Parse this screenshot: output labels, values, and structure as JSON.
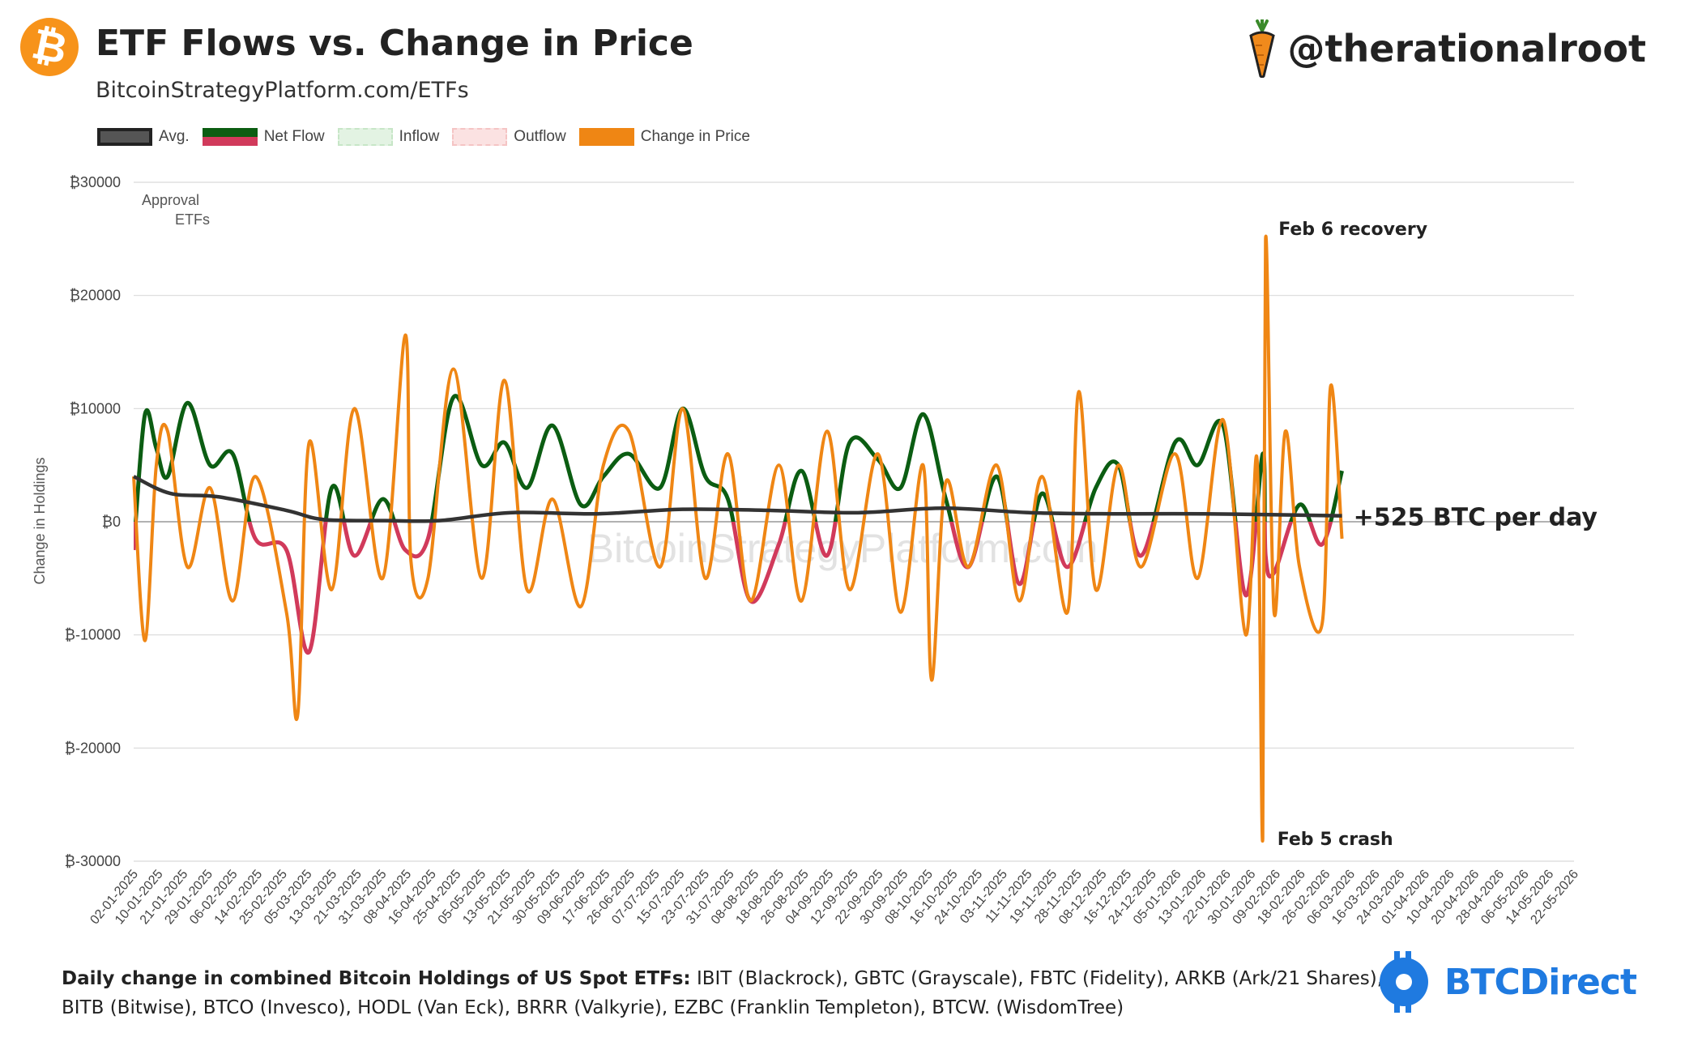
{
  "header": {
    "title": "ETF Flows vs. Change in Price",
    "subtitle": "BitcoinStrategyPlatform.com/ETFs",
    "logo_glyph": "₿",
    "handle": "@therationalroot"
  },
  "legend": [
    {
      "label": "Avg.",
      "key": "avg"
    },
    {
      "label": "Net Flow",
      "key": "net"
    },
    {
      "label": "Inflow",
      "key": "inflow"
    },
    {
      "label": "Outflow",
      "key": "outflow"
    },
    {
      "label": "Change in Price",
      "key": "price"
    }
  ],
  "colors": {
    "avg": "#333333",
    "net_positive": "#0b5d12",
    "net_negative": "#d13a5b",
    "inflow": "#d9efd9",
    "outflow": "#f9d6d6",
    "price": "#ef8614",
    "grid": "#d9d9d9",
    "brand": "#1f7ae0",
    "bitcoin": "#f7931a"
  },
  "footer": {
    "bold": "Daily change in combined Bitcoin Holdings of US Spot ETFs:",
    "text": " IBIT (Blackrock), GBTC (Grayscale), FBTC (Fidelity), ARKB (Ark/21 Shares), BITB (Bitwise), BTCO (Invesco), HODL (Van Eck), BRRR (Valkyrie), EZBC (Franklin Templeton), BTCW. (WisdomTree)"
  },
  "brand": {
    "name": "BTCDirect"
  },
  "watermark": "BitcoinStrategyPlatform.com",
  "chart_data": {
    "type": "line",
    "ylabel": "Change in Holdings",
    "ylim": [
      -30000,
      30000
    ],
    "yticks": [
      30000,
      20000,
      10000,
      0,
      -10000,
      -20000,
      -30000
    ],
    "ytick_labels": [
      "₿30000",
      "₿20000",
      "₿10000",
      "₿0",
      "₿-10000",
      "₿-20000",
      "₿-30000"
    ],
    "grid": true,
    "legend_position": "top-left",
    "x_range": [
      "2025-01-02",
      "2026-05-26"
    ],
    "x_tick_labels": [
      "02-01-2025",
      "10-01-2025",
      "21-01-2025",
      "29-01-2025",
      "06-02-2025",
      "14-02-2025",
      "25-02-2025",
      "05-03-2025",
      "13-03-2025",
      "21-03-2025",
      "31-03-2025",
      "08-04-2025",
      "16-04-2025",
      "25-04-2025",
      "05-05-2025",
      "13-05-2025",
      "21-05-2025",
      "30-05-2025",
      "09-06-2025",
      "17-06-2025",
      "26-06-2025",
      "07-07-2025",
      "15-07-2025",
      "23-07-2025",
      "31-07-2025",
      "08-08-2025",
      "18-08-2025",
      "26-08-2025",
      "04-09-2025",
      "12-09-2025",
      "22-09-2025",
      "30-09-2025",
      "08-10-2025",
      "16-10-2025",
      "24-10-2025",
      "03-11-2025",
      "11-11-2025",
      "19-11-2025",
      "28-11-2025",
      "08-12-2025",
      "16-12-2025",
      "24-12-2025",
      "05-01-2026",
      "13-01-2026",
      "22-01-2026",
      "30-01-2026",
      "09-02-2026",
      "18-02-2026",
      "26-02-2026",
      "06-03-2026",
      "16-03-2026",
      "24-03-2026",
      "01-04-2026",
      "10-04-2026",
      "20-04-2026",
      "28-04-2026",
      "06-05-2026",
      "14-05-2026",
      "22-05-2026"
    ],
    "annotations": [
      {
        "text": "Approval\nETFs",
        "x": "2025-01-02",
        "y": 28000
      },
      {
        "text": "Feb 6 recovery",
        "x": "2026-02-06",
        "y": 25000
      },
      {
        "text": "Feb 5 crash",
        "x": "2026-02-05",
        "y": -28000
      },
      {
        "text": "+525 BTC per day",
        "x": "2026-03-05",
        "y": 525
      }
    ],
    "series": [
      {
        "name": "Net Flow",
        "x": [
          "2025-01-02",
          "2025-01-06",
          "2025-01-10",
          "2025-01-14",
          "2025-01-21",
          "2025-01-29",
          "2025-02-06",
          "2025-02-14",
          "2025-02-25",
          "2025-03-05",
          "2025-03-13",
          "2025-03-21",
          "2025-03-31",
          "2025-04-08",
          "2025-04-16",
          "2025-04-25",
          "2025-05-05",
          "2025-05-13",
          "2025-05-21",
          "2025-05-30",
          "2025-06-09",
          "2025-06-17",
          "2025-06-26",
          "2025-07-07",
          "2025-07-15",
          "2025-07-23",
          "2025-07-31",
          "2025-08-08",
          "2025-08-18",
          "2025-08-26",
          "2025-09-04",
          "2025-09-12",
          "2025-09-22",
          "2025-09-30",
          "2025-10-08",
          "2025-10-16",
          "2025-10-24",
          "2025-11-03",
          "2025-11-11",
          "2025-11-19",
          "2025-11-28",
          "2025-12-08",
          "2025-12-16",
          "2025-12-24",
          "2026-01-05",
          "2026-01-13",
          "2026-01-22",
          "2026-01-30",
          "2026-02-05",
          "2026-02-06",
          "2026-02-09",
          "2026-02-18",
          "2026-02-26",
          "2026-03-05"
        ],
        "values": [
          -2500,
          9500,
          6500,
          4000,
          10500,
          5000,
          6000,
          -1500,
          -2500,
          -11500,
          3000,
          -3000,
          2000,
          -2500,
          -1500,
          11000,
          5000,
          7000,
          3000,
          8500,
          1500,
          4000,
          6000,
          3000,
          10000,
          4000,
          2000,
          -7000,
          -2000,
          4500,
          -3000,
          7000,
          5500,
          3000,
          9500,
          2000,
          -4000,
          4000,
          -5500,
          2500,
          -4000,
          3000,
          5000,
          -3000,
          7000,
          5000,
          8500,
          -6500,
          6000,
          -3000,
          -4500,
          1500,
          -2000,
          4500
        ]
      },
      {
        "name": "Change in Price",
        "x": [
          "2025-01-02",
          "2025-01-06",
          "2025-01-10",
          "2025-01-14",
          "2025-01-21",
          "2025-01-29",
          "2025-02-06",
          "2025-02-14",
          "2025-02-25",
          "2025-03-01",
          "2025-03-05",
          "2025-03-13",
          "2025-03-21",
          "2025-03-31",
          "2025-04-08",
          "2025-04-10",
          "2025-04-16",
          "2025-04-25",
          "2025-05-05",
          "2025-05-13",
          "2025-05-21",
          "2025-05-30",
          "2025-06-09",
          "2025-06-17",
          "2025-06-26",
          "2025-07-07",
          "2025-07-15",
          "2025-07-23",
          "2025-07-31",
          "2025-08-08",
          "2025-08-18",
          "2025-08-26",
          "2025-09-04",
          "2025-09-12",
          "2025-09-22",
          "2025-09-30",
          "2025-10-08",
          "2025-10-11",
          "2025-10-16",
          "2025-10-24",
          "2025-11-03",
          "2025-11-11",
          "2025-11-19",
          "2025-11-28",
          "2025-12-02",
          "2025-12-08",
          "2025-12-16",
          "2025-12-24",
          "2026-01-05",
          "2026-01-13",
          "2026-01-22",
          "2026-01-30",
          "2026-02-03",
          "2026-02-05",
          "2026-02-06",
          "2026-02-09",
          "2026-02-13",
          "2026-02-18",
          "2026-02-26",
          "2026-03-01",
          "2026-03-05"
        ],
        "values": [
          4000,
          -10500,
          5000,
          8000,
          -4000,
          3000,
          -7000,
          4000,
          -8000,
          -17000,
          7000,
          -6000,
          10000,
          -5000,
          16500,
          -3500,
          -5000,
          13500,
          -5000,
          12500,
          -6000,
          2000,
          -7500,
          5000,
          8000,
          -4000,
          10000,
          -5000,
          6000,
          -7000,
          5000,
          -7000,
          8000,
          -6000,
          6000,
          -8000,
          5000,
          -14000,
          3500,
          -4000,
          5000,
          -7000,
          4000,
          -8000,
          11500,
          -6000,
          5000,
          -4000,
          6000,
          -5000,
          9000,
          -10000,
          5500,
          -28000,
          25000,
          -8000,
          8000,
          -4000,
          -9000,
          12000,
          -1500
        ]
      },
      {
        "name": "Avg.",
        "x": [
          "2025-01-02",
          "2025-01-15",
          "2025-02-01",
          "2025-02-25",
          "2025-03-10",
          "2025-04-01",
          "2025-04-20",
          "2025-05-15",
          "2025-06-15",
          "2025-07-15",
          "2025-08-15",
          "2025-09-15",
          "2025-10-15",
          "2025-11-15",
          "2025-12-15",
          "2026-01-15",
          "2026-02-15",
          "2026-03-05"
        ],
        "values": [
          4000,
          2500,
          2200,
          1000,
          200,
          100,
          100,
          800,
          700,
          1100,
          1000,
          800,
          1200,
          800,
          700,
          700,
          600,
          525
        ]
      }
    ]
  }
}
